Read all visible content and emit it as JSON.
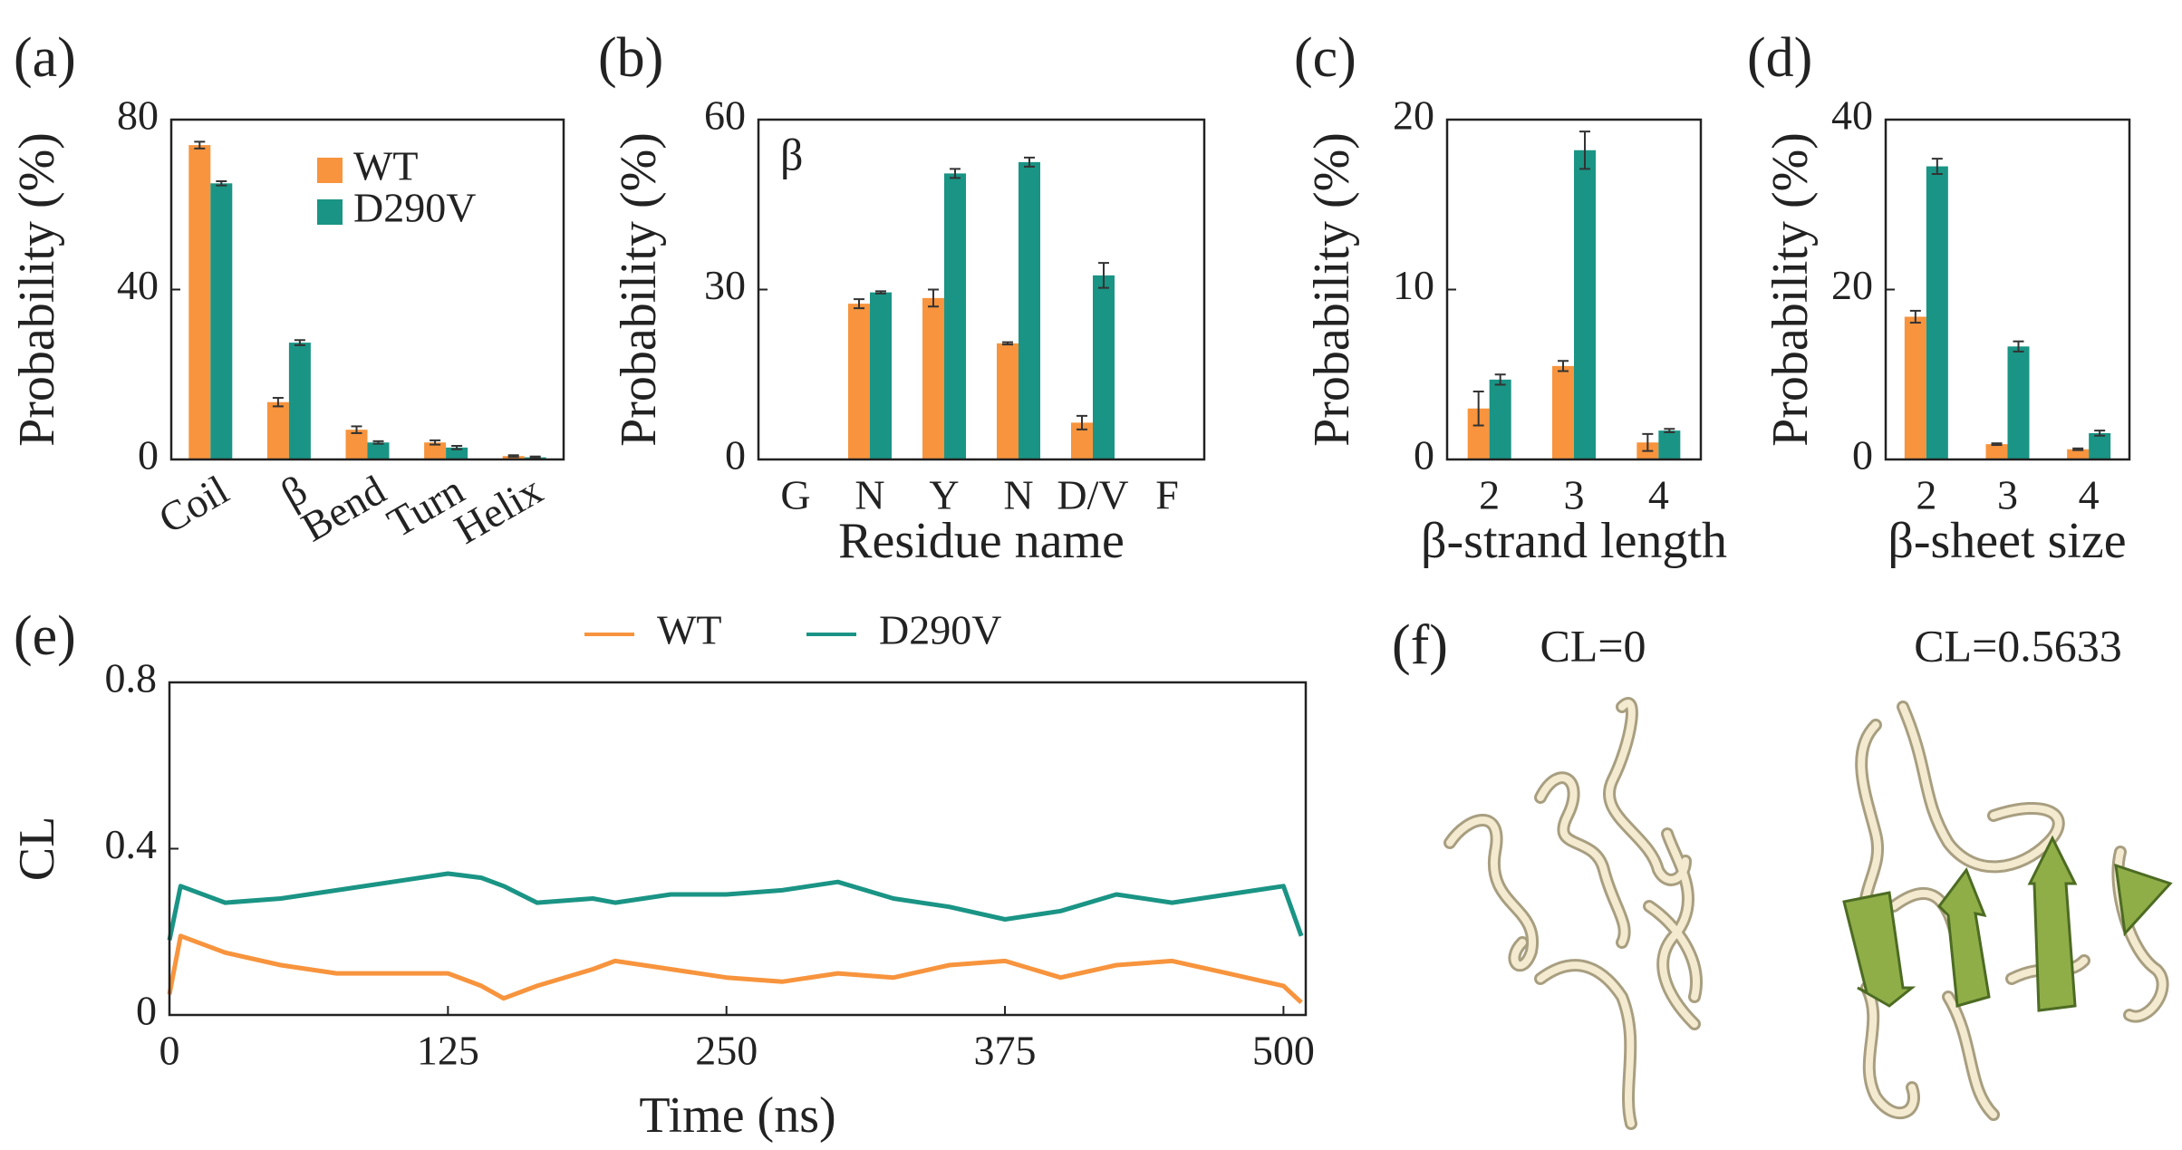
{
  "chart_data": [
    {
      "type": "bar",
      "panel_label": "(a)",
      "y_label": "Probability (%)",
      "categories": [
        "Coil",
        "β",
        "Bend",
        "Turn",
        "Helix"
      ],
      "label_rotation": 30,
      "series": [
        {
          "name": "WT",
          "color": "#f7943d",
          "values": [
            74,
            13.5,
            7,
            4,
            0.8
          ],
          "errors": [
            0.8,
            1,
            0.8,
            0.5,
            0.2
          ]
        },
        {
          "name": "D290V",
          "color": "#1a9485",
          "values": [
            65,
            27.5,
            4,
            2.8,
            0.5
          ],
          "errors": [
            0.5,
            0.6,
            0.3,
            0.4,
            0.2
          ]
        }
      ],
      "ylim": [
        0,
        80
      ],
      "yticks": [
        0,
        40,
        80
      ],
      "legend": "upper right"
    },
    {
      "type": "bar",
      "panel_label": "(b)",
      "y_label": "Probability (%)",
      "x_label": "Residue name",
      "annotation": "β",
      "categories": [
        "G",
        "N",
        "Y",
        "N",
        "D/V",
        "F"
      ],
      "series": [
        {
          "name": "WT",
          "color": "#f7943d",
          "values": [
            null,
            27.5,
            28.5,
            20.5,
            6.5,
            null
          ],
          "errors": [
            null,
            0.8,
            1.5,
            0.2,
            1.2,
            null
          ]
        },
        {
          "name": "D290V",
          "color": "#1a9485",
          "values": [
            null,
            29.5,
            50.5,
            52.5,
            32.5,
            null
          ],
          "errors": [
            null,
            0.2,
            0.8,
            0.8,
            2.2,
            null
          ]
        }
      ],
      "ylim": [
        0,
        60
      ],
      "yticks": [
        0,
        30,
        60
      ]
    },
    {
      "type": "bar",
      "panel_label": "(c)",
      "y_label": "Probability (%)",
      "x_label": "β-strand length",
      "categories": [
        "2",
        "3",
        "4"
      ],
      "series": [
        {
          "name": "WT",
          "color": "#f7943d",
          "values": [
            3,
            5.5,
            1
          ],
          "errors": [
            1,
            0.3,
            0.5
          ]
        },
        {
          "name": "D290V",
          "color": "#1a9485",
          "values": [
            4.7,
            18.2,
            1.7
          ],
          "errors": [
            0.3,
            1.1,
            0.1
          ]
        }
      ],
      "ylim": [
        0,
        20
      ],
      "yticks": [
        0,
        10,
        20
      ]
    },
    {
      "type": "bar",
      "panel_label": "(d)",
      "y_label": "Probability (%)",
      "x_label": "β-sheet size",
      "categories": [
        "2",
        "3",
        "4"
      ],
      "series": [
        {
          "name": "WT",
          "color": "#f7943d",
          "values": [
            16.8,
            1.8,
            1.2
          ],
          "errors": [
            0.7,
            0.1,
            0.1
          ]
        },
        {
          "name": "D290V",
          "color": "#1a9485",
          "values": [
            34.5,
            13.3,
            3.1
          ],
          "errors": [
            0.9,
            0.6,
            0.3
          ]
        }
      ],
      "ylim": [
        0,
        40
      ],
      "yticks": [
        0,
        20,
        40
      ]
    },
    {
      "type": "line",
      "panel_label": "(e)",
      "y_label": "CL",
      "x_label": "Time (ns)",
      "x": [
        0,
        5,
        25,
        50,
        75,
        100,
        125,
        140,
        150,
        165,
        190,
        200,
        225,
        250,
        275,
        300,
        325,
        350,
        375,
        400,
        425,
        450,
        475,
        500,
        508
      ],
      "series": [
        {
          "name": "WT",
          "color": "#f7943d",
          "values": [
            0.05,
            0.19,
            0.15,
            0.12,
            0.1,
            0.1,
            0.1,
            0.07,
            0.04,
            0.07,
            0.11,
            0.13,
            0.11,
            0.09,
            0.08,
            0.1,
            0.09,
            0.12,
            0.13,
            0.09,
            0.12,
            0.13,
            0.1,
            0.07,
            0.03
          ]
        },
        {
          "name": "D290V",
          "color": "#1a9485",
          "values": [
            0.18,
            0.31,
            0.27,
            0.28,
            0.3,
            0.32,
            0.34,
            0.33,
            0.31,
            0.27,
            0.28,
            0.27,
            0.29,
            0.29,
            0.3,
            0.32,
            0.28,
            0.26,
            0.23,
            0.25,
            0.29,
            0.27,
            0.29,
            0.31,
            0.19
          ]
        }
      ],
      "xlim": [
        0,
        510
      ],
      "xticks": [
        0,
        125,
        250,
        375,
        500
      ],
      "ylim": [
        0,
        0.8
      ],
      "yticks": [
        0,
        0.4,
        0.8
      ],
      "legend": "top"
    }
  ],
  "panel_f": {
    "label": "(f)",
    "captions": [
      "CL=0",
      "CL=0.5633"
    ]
  }
}
